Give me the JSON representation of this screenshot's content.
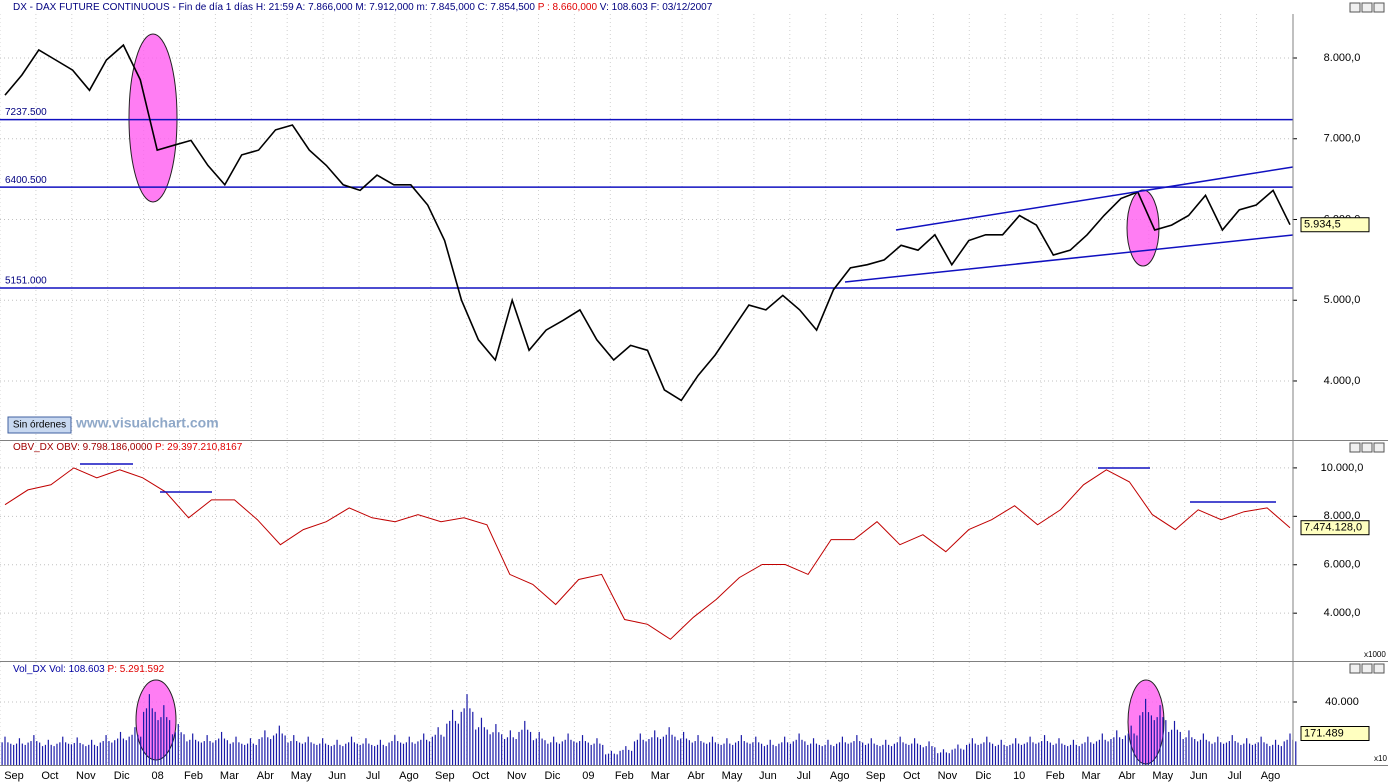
{
  "chart_data": [
    {
      "type": "line",
      "title": "DX - DAX FUTURE CONTINUOUS - Fin de día 1 días  H: 21:59  A: 7.866,000  M: 7.912,000  m: 7.845,000  C: 7.854,500",
      "title_extra": "P : 8.660,000",
      "title_tail": "V: 108.603  F: 03/12/2007",
      "series": [
        {
          "color": "#000000",
          "values": [
            7540,
            7790,
            8100,
            7975,
            7850,
            7600,
            7975,
            8160,
            7730,
            6860,
            6920,
            6980,
            6670,
            6430,
            6800,
            6860,
            7110,
            7170,
            6860,
            6670,
            6430,
            6360,
            6550,
            6430,
            6430,
            6180,
            5740,
            5000,
            4510,
            4260,
            5000,
            4380,
            4630,
            4750,
            4880,
            4510,
            4260,
            4440,
            4380,
            3890,
            3760,
            4070,
            4320,
            4630,
            4940,
            4880,
            5060,
            4880,
            4630,
            5130,
            5400,
            5440,
            5500,
            5680,
            5620,
            5810,
            5440,
            5740,
            5810,
            5810,
            6050,
            5930,
            5560,
            5620,
            5810,
            6050,
            6260,
            6340,
            5870,
            5930,
            6050,
            6300,
            5870,
            6120,
            6180,
            6360,
            5935
          ]
        }
      ],
      "ylim": [
        3269,
        8545
      ],
      "yticks": [
        {
          "value": 4000,
          "label": "4.000,0"
        },
        {
          "value": 5000,
          "label": "5.000,0"
        },
        {
          "value": 6000,
          "label": "6.000,0"
        },
        {
          "value": 7000,
          "label": "7.000,0"
        },
        {
          "value": 8000,
          "label": "8.000,0"
        }
      ],
      "hlines": [
        {
          "value": 7237.5,
          "label": "7237.500"
        },
        {
          "value": 6400.5,
          "label": "6400.500"
        },
        {
          "value": 5151,
          "label": "5151.000"
        }
      ],
      "current_label": "5.934,5",
      "button": "Sin órdenes",
      "watermark": "www.visualchart.com"
    },
    {
      "type": "line",
      "title": "OBV_DX  OBV: 9.798.186,0000",
      "title_extra": "P: 29.397.210,8167",
      "series": [
        {
          "color": "#c00000",
          "values": [
            8480,
            9090,
            9300,
            10000,
            9590,
            9920,
            9590,
            9010,
            7940,
            8680,
            8680,
            7860,
            6830,
            7450,
            7780,
            8350,
            7940,
            7780,
            8070,
            7780,
            7940,
            7650,
            5600,
            5190,
            4360,
            5390,
            5600,
            3740,
            3540,
            2920,
            3830,
            4570,
            5470,
            6010,
            6010,
            5600,
            7040,
            7040,
            7780,
            6830,
            7240,
            6540,
            7450,
            7860,
            8440,
            7650,
            8270,
            9300,
            9920,
            9420,
            8070,
            7450,
            8270,
            7860,
            8190,
            8350,
            7530
          ]
        }
      ],
      "ylim": [
        2066,
        11111
      ],
      "yticks": [
        {
          "value": 4000,
          "label": "4.000,0"
        },
        {
          "value": 6000,
          "label": "6.000,0"
        },
        {
          "value": 8000,
          "label": "8.000,0"
        },
        {
          "value": 10000,
          "label": "10.000,0"
        }
      ],
      "current_label": "7.474.128,0",
      "scale_label": "x1000"
    },
    {
      "type": "bar",
      "title": "Vol_DX  Vol: 108.603",
      "title_extra": "P: 5.291.592",
      "color": "#1a1aa8",
      "values": [
        18000,
        17000,
        19000,
        16000,
        18000,
        17500,
        16000,
        19000,
        21000,
        24000,
        45000,
        38000,
        26000,
        20000,
        19000,
        21000,
        18000,
        17000,
        22000,
        25000,
        19000,
        18000,
        17000,
        16000,
        18000,
        17000,
        16000,
        19000,
        18000,
        20000,
        24000,
        35000,
        45000,
        30000,
        26000,
        22000,
        28000,
        21000,
        18000,
        20000,
        19000,
        17000,
        9000,
        12000,
        20000,
        22000,
        24000,
        21000,
        19000,
        18000,
        17000,
        19000,
        18000,
        16000,
        18000,
        20000,
        17000,
        16000,
        18000,
        19000,
        17000,
        16000,
        18000,
        17000,
        15000,
        10000,
        13000,
        17000,
        18000,
        16000,
        17000,
        18000,
        19000,
        17000,
        16000,
        18000,
        20000,
        22000,
        25000,
        42000,
        38000,
        28000,
        22000,
        20000,
        18000,
        19000,
        17000,
        18000,
        16000,
        20000
      ],
      "ylim": [
        0,
        65400
      ],
      "yticks": [
        {
          "value": 40000,
          "label": "40.000"
        }
      ],
      "current_label": "171.489",
      "scale_label": "x10",
      "xtick_labels": [
        "Sep",
        "Oct",
        "Nov",
        "Dic",
        "08",
        "Feb",
        "Mar",
        "Abr",
        "May",
        "Jun",
        "Jul",
        "Ago",
        "Sep",
        "Oct",
        "Nov",
        "Dic",
        "09",
        "Feb",
        "Mar",
        "Abr",
        "May",
        "Jun",
        "Jul",
        "Ago",
        "Sep",
        "Oct",
        "Nov",
        "Dic",
        "10",
        "Feb",
        "Mar",
        "Abr",
        "May",
        "Jun",
        "Jul",
        "Ago"
      ]
    }
  ]
}
